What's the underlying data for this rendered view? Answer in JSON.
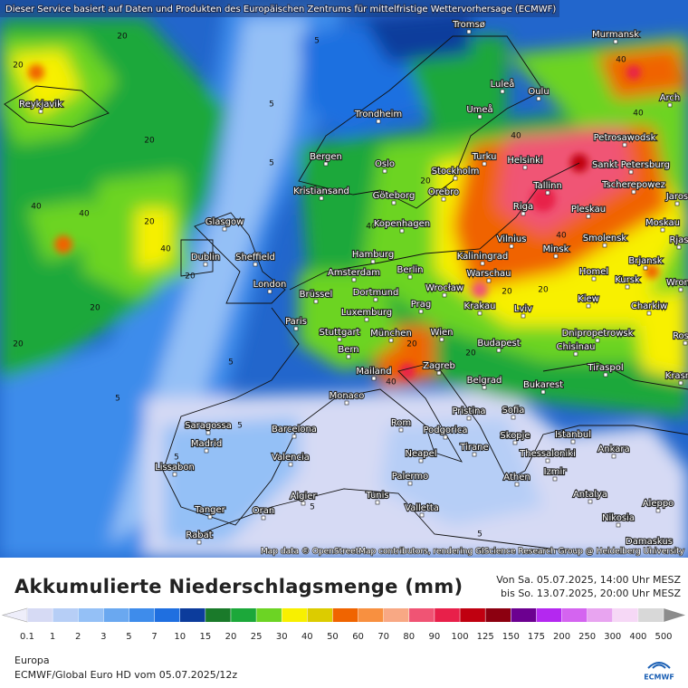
{
  "header": {
    "notice": "Dieser Service basiert auf Daten und Produkten des Europäischen Zentrums für mittelfristige Wettervorhersage (ECMWF)",
    "attribution": "Map data © OpenStreetMap contributors, rendering GIScience Research Group @ Heidelberg University"
  },
  "map": {
    "cities": [
      "Tromsø",
      "Murmansk",
      "Luleå",
      "Oulu",
      "Arch",
      "Reykjavik",
      "Trondheim",
      "Umeå",
      "Petrosawodsk",
      "Bergen",
      "Oslo",
      "Turku",
      "Helsinki",
      "Sankt Petersburg",
      "Stockholm",
      "Kristiansand",
      "Göteborg",
      "Orebro",
      "Tallinn",
      "Tscherepowez",
      "Jaros",
      "Glasgow",
      "Kopenhagen",
      "Riga",
      "Pleskau",
      "Moskau",
      "Dublin",
      "Sheffield",
      "Hamburg",
      "Vilnius",
      "Smolensk",
      "Rjas",
      "Kaliningrad",
      "Minsk",
      "Brjansk",
      "Amsterdam",
      "Berlin",
      "Warschau",
      "Homel",
      "Kursk",
      "Wrone",
      "London",
      "Brüssel",
      "Dortmund",
      "Wrocław",
      "Kiew",
      "Charkiw",
      "Prag",
      "Krakau",
      "Lviv",
      "Paris",
      "Luxemburg",
      "Stuttgart",
      "München",
      "Wien",
      "Dnipropetrowsk",
      "Rosto",
      "Chisinau",
      "Bern",
      "Budapest",
      "Mailand",
      "Zagreb",
      "Tiraspol",
      "Krasno",
      "Belgrad",
      "Bukarest",
      "Monaco",
      "Pristina",
      "Sofia",
      "Rom",
      "Podgorica",
      "Istanbul",
      "Skopje",
      "Saragossa",
      "Barcelona",
      "Madrid",
      "Ankara",
      "Tirane",
      "Thessaloniki",
      "Neapel",
      "Valencia",
      "Lissabon",
      "Izmir",
      "Palermo",
      "Athen",
      "Algier",
      "Tunis",
      "Antalya",
      "Aleppo",
      "Tanger",
      "Oran",
      "Valletta",
      "Nikosia",
      "Rabat",
      "Damaskus"
    ],
    "contour_labels": [
      5,
      20,
      40,
      40,
      20,
      20,
      5,
      40,
      20,
      5,
      20,
      40,
      20,
      5,
      5,
      20,
      40,
      40,
      20,
      5,
      5,
      20,
      40,
      20,
      5,
      5,
      40,
      20,
      40,
      20
    ]
  },
  "legend": {
    "title": "Akkumulierte Niederschlagsmenge (mm)",
    "valid_from": "Von Sa. 05.07.2025, 14:00 Uhr MESZ",
    "valid_to": "bis So. 13.07.2025, 20:00 Uhr MESZ",
    "levels": [
      0.1,
      1,
      2,
      3,
      5,
      7,
      10,
      15,
      20,
      25,
      30,
      40,
      50,
      60,
      70,
      80,
      90,
      100,
      125,
      150,
      175,
      200,
      250,
      300,
      400,
      500
    ],
    "colors": [
      "#eeeefa",
      "#d6daf4",
      "#b6cef6",
      "#94c0f6",
      "#6aa8f0",
      "#3e8ceb",
      "#1f6fe0",
      "#0c3c9c",
      "#1a7a2a",
      "#1ca83a",
      "#6cd424",
      "#f8f000",
      "#dccc00",
      "#f06400",
      "#f89040",
      "#f8a884",
      "#f05474",
      "#e8204a",
      "#c00010",
      "#8c0010",
      "#6c0090",
      "#b428f0",
      "#d464f0",
      "#e8a4f0",
      "#f6d8f6",
      "#d8d8d8",
      "#8c8c8c"
    ],
    "region": "Europa",
    "model": "ECMWF/Global Euro HD vom  05.07.2025/12z",
    "logo": "ECMWF"
  }
}
